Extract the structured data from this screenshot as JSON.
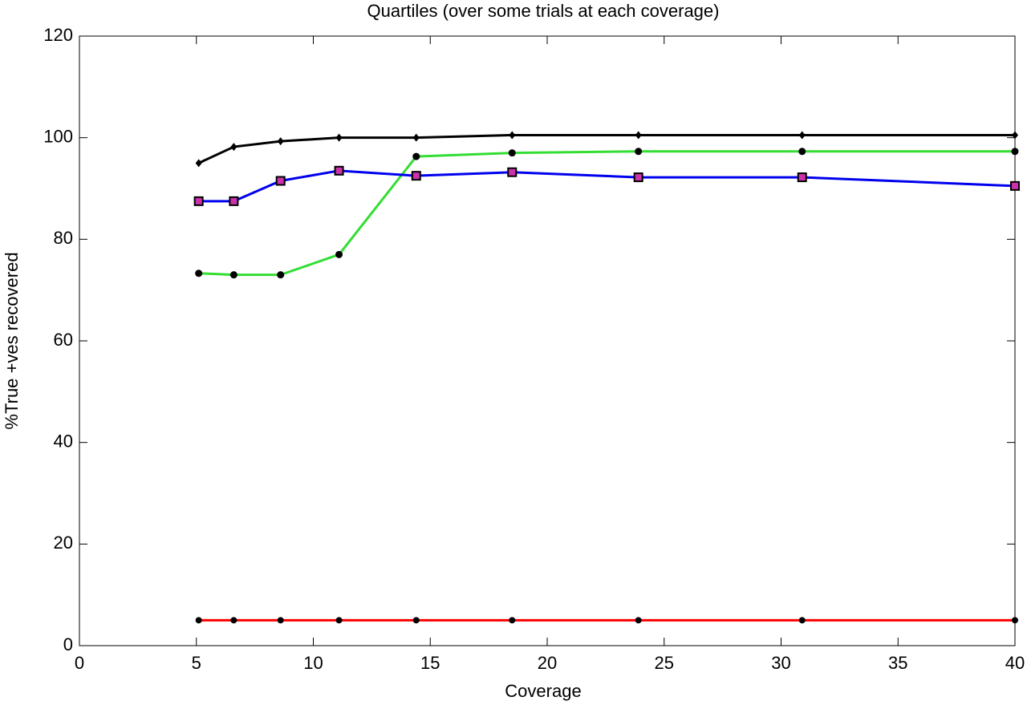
{
  "chart_data": {
    "type": "line",
    "title": "Quartiles (over some trials at each coverage)",
    "xlabel": "Coverage",
    "ylabel": "%True +ves recovered",
    "x": [
      5.1,
      6.6,
      8.6,
      11.1,
      14.4,
      18.5,
      23.9,
      30.9,
      40
    ],
    "series": [
      {
        "color": "#000000",
        "marker": "diamond",
        "values": [
          95,
          98.2,
          99.3,
          100,
          100,
          100.5,
          100.5,
          100.5,
          100.5
        ]
      },
      {
        "color": "#33dd33",
        "marker": "circle",
        "values": [
          73.3,
          73,
          73,
          77,
          96.3,
          97,
          97.3,
          97.3,
          97.3
        ]
      },
      {
        "color": "#0000ee",
        "marker": "square",
        "values": [
          87.5,
          87.5,
          91.5,
          93.5,
          92.5,
          93.2,
          92.2,
          92.2,
          90.5
        ]
      },
      {
        "color": "#ff0000",
        "marker": "dot",
        "values": [
          5,
          5,
          5,
          5,
          5,
          5,
          5,
          5,
          5
        ]
      }
    ],
    "xlim": [
      0,
      40
    ],
    "xticks": [
      0,
      5,
      10,
      15,
      20,
      25,
      30,
      35,
      40
    ],
    "ylim": [
      0,
      120
    ],
    "yticks": [
      0,
      20,
      40,
      60,
      80,
      100,
      120
    ],
    "grid": false
  }
}
